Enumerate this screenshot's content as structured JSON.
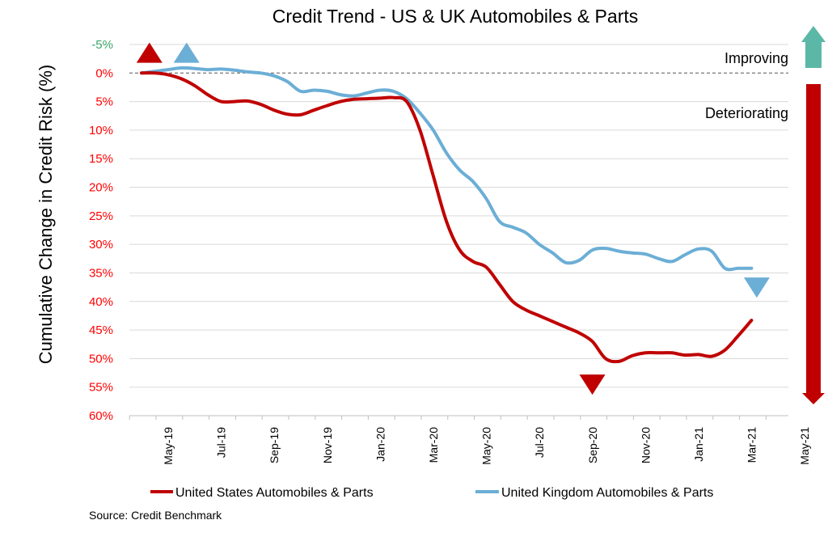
{
  "chart_data": {
    "type": "line",
    "title": "Credit Trend - US & UK Automobiles & Parts",
    "ylabel": "Cumulative Change in Credit Risk (%)",
    "xlabel": "",
    "ylim": [
      -5,
      60
    ],
    "y_reversed": true,
    "y_ticks": [
      -5,
      0,
      5,
      10,
      15,
      20,
      25,
      30,
      35,
      40,
      45,
      50,
      55,
      60
    ],
    "y_tick_labels": [
      "-5%",
      "0%",
      "5%",
      "10%",
      "15%",
      "20%",
      "25%",
      "30%",
      "35%",
      "40%",
      "45%",
      "50%",
      "55%",
      "60%"
    ],
    "x_tick_labels": [
      "May-19",
      "Jul-19",
      "Sep-19",
      "Nov-19",
      "Jan-20",
      "Mar-20",
      "May-20",
      "Jul-20",
      "Sep-20",
      "Nov-20",
      "Jan-21",
      "Mar-21",
      "May-21"
    ],
    "x_range_months": [
      0,
      25
    ],
    "grid": true,
    "legend_position": "bottom",
    "annotations": {
      "improving": "Improving",
      "deteriorating": "Deteriorating",
      "source": "Source: Credit Benchmark"
    },
    "colors": {
      "us": "#c00000",
      "uk": "#6baed6",
      "improving_arrow": "#5bb8a6",
      "deteriorating_arrow": "#c00000",
      "improving_tick": "#3aa26a",
      "deteriorating_tick": "#ff0000"
    },
    "series": [
      {
        "name": "United States Automobiles & Parts",
        "color": "#c00000",
        "x": [
          0,
          0.5,
          1,
          1.5,
          2,
          2.5,
          3,
          3.5,
          4,
          4.5,
          5,
          5.5,
          6,
          6.5,
          7,
          7.5,
          8,
          8.5,
          9,
          9.5,
          10,
          10.5,
          11,
          11.5,
          12,
          12.5,
          13,
          13.5,
          14,
          14.5,
          15,
          15.5,
          16,
          16.5,
          17,
          17.5,
          18,
          18.5,
          19,
          19.5,
          20,
          20.5,
          21,
          21.5,
          22,
          22.5,
          23
        ],
        "values": [
          0,
          0,
          0.3,
          1,
          2.2,
          3.8,
          5.0,
          5.0,
          4.9,
          5.5,
          6.5,
          7.2,
          7.3,
          6.5,
          5.7,
          5.0,
          4.6,
          4.5,
          4.4,
          4.3,
          5.0,
          10,
          18,
          26,
          31,
          33,
          34,
          37,
          40,
          41.5,
          42.5,
          43.5,
          44.5,
          45.5,
          47,
          50,
          50.5,
          49.5,
          49,
          49,
          49,
          49.4,
          49.3,
          49.6,
          48.5,
          46,
          43.3
        ]
      },
      {
        "name": "United Kingdom Automobiles & Parts",
        "color": "#6baed6",
        "x": [
          0,
          0.5,
          1,
          1.5,
          2,
          2.5,
          3,
          3.5,
          4,
          4.5,
          5,
          5.5,
          6,
          6.5,
          7,
          7.5,
          8,
          8.5,
          9,
          9.5,
          10,
          10.5,
          11,
          11.5,
          12,
          12.5,
          13,
          13.5,
          14,
          14.5,
          15,
          15.5,
          16,
          16.5,
          17,
          17.5,
          18,
          18.5,
          19,
          19.5,
          20,
          20.5,
          21,
          21.5,
          22,
          22.5,
          23
        ],
        "values": [
          0,
          -0.3,
          -0.6,
          -0.9,
          -0.8,
          -0.6,
          -0.7,
          -0.5,
          -0.2,
          0,
          0.5,
          1.5,
          3.2,
          3.0,
          3.2,
          3.8,
          4.0,
          3.5,
          3.0,
          3.2,
          4.5,
          7,
          10,
          14,
          17,
          19,
          22,
          26,
          27,
          28,
          30,
          31.5,
          33.2,
          32.8,
          31.0,
          30.7,
          31.2,
          31.5,
          31.7,
          32.5,
          33,
          31.8,
          30.8,
          31.2,
          34.2,
          34.2,
          34.2
        ]
      }
    ],
    "markers": [
      {
        "series": "us",
        "direction": "up",
        "x": 0.3,
        "y": -3.5
      },
      {
        "series": "uk",
        "direction": "up",
        "x": 1.7,
        "y": -3.5
      },
      {
        "series": "us",
        "direction": "down",
        "x": 17.0,
        "y": 54.5
      },
      {
        "series": "uk",
        "direction": "down",
        "x": 23.2,
        "y": 37.5
      }
    ]
  }
}
